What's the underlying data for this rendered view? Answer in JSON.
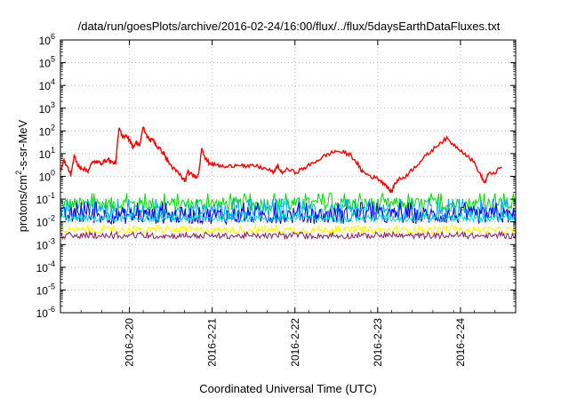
{
  "chart_data": {
    "type": "line",
    "title": "/data/run/goesPlots/archive/2016-02-24/16:00/flux/../flux/5daysEarthDataFluxes.txt",
    "xlabel": "Coordinated Universal Time (UTC)",
    "ylabel": {
      "prefix": "protons/cm",
      "sup": "2",
      "suffix": "-s-sr-MeV"
    },
    "yscale": "log",
    "ylim": [
      1e-06,
      1000000.0
    ],
    "yticks": [
      {
        "value": 1000000.0,
        "mantissa": "10",
        "exp": "6"
      },
      {
        "value": 100000.0,
        "mantissa": "10",
        "exp": "5"
      },
      {
        "value": 10000.0,
        "mantissa": "10",
        "exp": "4"
      },
      {
        "value": 1000.0,
        "mantissa": "10",
        "exp": "3"
      },
      {
        "value": 100.0,
        "mantissa": "10",
        "exp": "2"
      },
      {
        "value": 10.0,
        "mantissa": "10",
        "exp": "1"
      },
      {
        "value": 1.0,
        "mantissa": "10",
        "exp": "0"
      },
      {
        "value": 0.1,
        "mantissa": "10",
        "exp": "-1"
      },
      {
        "value": 0.01,
        "mantissa": "10",
        "exp": "-2"
      },
      {
        "value": 0.001,
        "mantissa": "10",
        "exp": "-3"
      },
      {
        "value": 0.0001,
        "mantissa": "10",
        "exp": "-4"
      },
      {
        "value": 1e-05,
        "mantissa": "10",
        "exp": "-5"
      },
      {
        "value": 1e-06,
        "mantissa": "10",
        "exp": "-6"
      }
    ],
    "xlim": [
      "2016-02-19T04:00",
      "2016-02-24T16:00"
    ],
    "xticks": [
      "2016-2-20",
      "2016-2-21",
      "2016-2-22",
      "2016-2-23",
      "2016-2-24"
    ],
    "grid": true,
    "series": [
      {
        "color": "#ff0000",
        "points": [
          [
            "2016-02-19T04:00",
            2.0
          ],
          [
            "2016-02-19T05:00",
            5.0
          ],
          [
            "2016-02-19T06:00",
            2.5
          ],
          [
            "2016-02-19T07:00",
            1.2
          ],
          [
            "2016-02-19T08:00",
            8.0
          ],
          [
            "2016-02-19T09:00",
            3.0
          ],
          [
            "2016-02-19T10:00",
            2.5
          ],
          [
            "2016-02-19T11:00",
            2.0
          ],
          [
            "2016-02-19T12:00",
            1.8
          ],
          [
            "2016-02-19T13:00",
            3.5
          ],
          [
            "2016-02-19T14:00",
            4.5
          ],
          [
            "2016-02-19T15:00",
            4.0
          ],
          [
            "2016-02-19T16:00",
            4.0
          ],
          [
            "2016-02-19T17:00",
            5.0
          ],
          [
            "2016-02-19T18:00",
            5.5
          ],
          [
            "2016-02-19T19:00",
            4.0
          ],
          [
            "2016-02-19T20:00",
            4.0
          ],
          [
            "2016-02-19T21:00",
            130
          ],
          [
            "2016-02-19T22:00",
            50
          ],
          [
            "2016-02-19T23:00",
            70
          ],
          [
            "2016-02-20T00:00",
            40
          ],
          [
            "2016-02-20T01:00",
            20
          ],
          [
            "2016-02-20T02:00",
            30
          ],
          [
            "2016-02-20T03:00",
            25
          ],
          [
            "2016-02-20T04:00",
            140
          ],
          [
            "2016-02-20T05:00",
            60
          ],
          [
            "2016-02-20T06:00",
            40
          ],
          [
            "2016-02-20T07:00",
            40
          ],
          [
            "2016-02-20T08:00",
            20
          ],
          [
            "2016-02-20T09:00",
            15
          ],
          [
            "2016-02-20T10:00",
            10
          ],
          [
            "2016-02-20T11:00",
            5.0
          ],
          [
            "2016-02-20T12:00",
            3.0
          ],
          [
            "2016-02-20T13:00",
            2.0
          ],
          [
            "2016-02-20T14:00",
            1.5
          ],
          [
            "2016-02-20T15:00",
            1.0
          ],
          [
            "2016-02-20T16:00",
            0.6
          ],
          [
            "2016-02-20T17:00",
            1.5
          ],
          [
            "2016-02-20T18:00",
            1.2
          ],
          [
            "2016-02-20T19:00",
            1.0
          ],
          [
            "2016-02-20T20:00",
            1.1
          ],
          [
            "2016-02-20T21:00",
            20
          ],
          [
            "2016-02-20T22:00",
            6.0
          ],
          [
            "2016-02-20T23:00",
            4.0
          ],
          [
            "2016-02-21T00:00",
            3.5
          ],
          [
            "2016-02-21T02:00",
            3.0
          ],
          [
            "2016-02-21T04:00",
            2.5
          ],
          [
            "2016-02-21T06:00",
            3.0
          ],
          [
            "2016-02-21T08:00",
            3.5
          ],
          [
            "2016-02-21T10:00",
            2.5
          ],
          [
            "2016-02-21T12:00",
            3.0
          ],
          [
            "2016-02-21T14:00",
            2.5
          ],
          [
            "2016-02-21T16:00",
            2.0
          ],
          [
            "2016-02-21T18:00",
            1.5
          ],
          [
            "2016-02-21T19:00",
            3.0
          ],
          [
            "2016-02-21T20:00",
            1.5
          ],
          [
            "2016-02-21T22:00",
            2.0
          ],
          [
            "2016-02-22T00:00",
            1.5
          ],
          [
            "2016-02-22T02:00",
            2.0
          ],
          [
            "2016-02-22T04:00",
            3.0
          ],
          [
            "2016-02-22T06:00",
            4.5
          ],
          [
            "2016-02-22T08:00",
            7.0
          ],
          [
            "2016-02-22T10:00",
            10
          ],
          [
            "2016-02-22T12:00",
            13
          ],
          [
            "2016-02-22T14:00",
            11
          ],
          [
            "2016-02-22T16:00",
            9.0
          ],
          [
            "2016-02-22T18:00",
            4.0
          ],
          [
            "2016-02-22T19:00",
            2.0
          ],
          [
            "2016-02-22T20:00",
            1.5
          ],
          [
            "2016-02-22T22:00",
            1.0
          ],
          [
            "2016-02-23T00:00",
            0.8
          ],
          [
            "2016-02-23T01:00",
            0.6
          ],
          [
            "2016-02-23T02:00",
            0.5
          ],
          [
            "2016-02-23T03:00",
            0.3
          ],
          [
            "2016-02-23T04:00",
            0.2
          ],
          [
            "2016-02-23T05:00",
            0.5
          ],
          [
            "2016-02-23T06:00",
            0.7
          ],
          [
            "2016-02-23T08:00",
            1.0
          ],
          [
            "2016-02-23T10:00",
            2.0
          ],
          [
            "2016-02-23T12:00",
            4.0
          ],
          [
            "2016-02-23T14:00",
            8.0
          ],
          [
            "2016-02-23T16:00",
            15
          ],
          [
            "2016-02-23T18:00",
            30
          ],
          [
            "2016-02-23T20:00",
            45
          ],
          [
            "2016-02-23T22:00",
            25
          ],
          [
            "2016-02-24T00:00",
            15
          ],
          [
            "2016-02-24T02:00",
            8.0
          ],
          [
            "2016-02-24T04:00",
            4.0
          ],
          [
            "2016-02-24T06:00",
            1.0
          ],
          [
            "2016-02-24T07:00",
            0.5
          ],
          [
            "2016-02-24T08:00",
            1.2
          ],
          [
            "2016-02-24T10:00",
            1.5
          ],
          [
            "2016-02-24T12:00",
            2.5
          ]
        ]
      },
      {
        "color": "#00dd00",
        "band": [
          0.03,
          0.12
        ],
        "spikes": 0.18
      },
      {
        "color": "#00aaff",
        "band": [
          0.012,
          0.06
        ],
        "spikes": 0.1
      },
      {
        "color": "#0000ee",
        "band": [
          0.008,
          0.045
        ],
        "spikes": 0.07
      },
      {
        "color": "#00ddcc",
        "band": [
          0.01,
          0.02
        ],
        "spikes": 0.025
      },
      {
        "color": "#ffff00",
        "band": [
          0.003,
          0.006
        ],
        "spikes": 0.007
      },
      {
        "color": "#8a1c5a",
        "band": [
          0.0018,
          0.0032
        ],
        "spikes": 0.0035
      }
    ]
  }
}
